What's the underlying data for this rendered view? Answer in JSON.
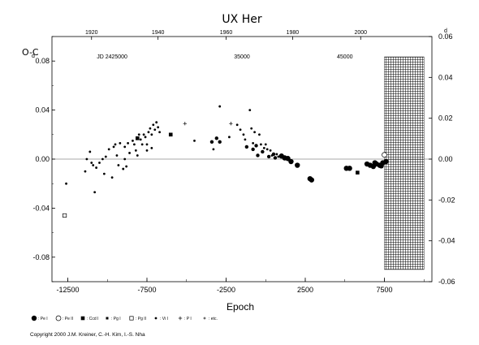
{
  "chart_data": {
    "type": "scatter",
    "title": "UX Her",
    "ylabel": "O-C",
    "xlabel": "Epoch",
    "xlim": [
      -13500,
      10500
    ],
    "ylim": [
      -0.1,
      0.1
    ],
    "right_ylim": [
      -0.06,
      0.06
    ],
    "x_ticks": [
      -12500,
      -7500,
      -2500,
      2500,
      7500
    ],
    "x_tick_labels": [
      "-12500",
      "-7500",
      "-2500",
      "2500",
      "7500"
    ],
    "y_ticks": [
      -0.08,
      -0.04,
      0.0,
      0.04,
      0.08
    ],
    "y_tick_labels": [
      "-0.08",
      "-0.04",
      "0.00",
      "0.04",
      "0.08"
    ],
    "y_exponent_label": "d",
    "right_y_ticks": [
      -0.06,
      -0.04,
      -0.02,
      0.0,
      0.02,
      0.04,
      0.06
    ],
    "right_y_tick_labels": [
      "-0.06",
      "-0.04",
      "-0.02",
      "0.00",
      "0.02",
      "0.04",
      "0.06"
    ],
    "right_y_exponent_label": "d",
    "top_year_ticks": [
      1920,
      1940,
      1960,
      1980,
      2000
    ],
    "top_year_labels": [
      "1920",
      "1940",
      "1960",
      "1980",
      "2000"
    ],
    "top_year_epochs": [
      -11000,
      -6800,
      -2500,
      1700,
      6000
    ],
    "jd_labels": [
      "JD 2425000",
      "35000",
      "45000"
    ],
    "jd_epochs": [
      -9700,
      -1500,
      5000
    ],
    "hatched_region": [
      7500,
      10000
    ],
    "grid": false,
    "legend_position": "bottom",
    "legend": [
      {
        "marker": "filled-circle-large",
        "label": ": Pe I"
      },
      {
        "marker": "open-circle",
        "label": ": Pe II"
      },
      {
        "marker": "filled-square",
        "label": ": Ccd I"
      },
      {
        "marker": "filled-square-small",
        "label": ": Pg I"
      },
      {
        "marker": "open-square",
        "label": ": Pg II"
      },
      {
        "marker": "filled-circle-small",
        "label": ": Vi I"
      },
      {
        "marker": "plus",
        "label": ": P I"
      },
      {
        "marker": "plus-small",
        "label": ": etc."
      }
    ],
    "series": [
      {
        "marker": "filled-circle-large",
        "points": [
          [
            1000,
            0.0025
          ],
          [
            1200,
            0.001
          ],
          [
            1400,
            0.0005
          ],
          [
            1600,
            -0.002
          ],
          [
            2000,
            -0.005
          ],
          [
            2800,
            -0.016
          ],
          [
            2900,
            -0.017
          ],
          [
            5100,
            -0.0075
          ],
          [
            5300,
            -0.0075
          ],
          [
            6400,
            -0.004
          ],
          [
            6600,
            -0.005
          ],
          [
            6800,
            -0.006
          ],
          [
            7000,
            -0.004
          ],
          [
            7200,
            -0.005
          ],
          [
            7400,
            -0.003
          ],
          [
            7600,
            -0.002
          ],
          [
            7300,
            -0.0055
          ],
          [
            6900,
            -0.003
          ]
        ]
      },
      {
        "marker": "open-circle",
        "points": [
          [
            7500,
            0.0035
          ]
        ]
      },
      {
        "marker": "filled-square",
        "points": [
          [
            -8100,
            0.017
          ],
          [
            -6000,
            0.02
          ],
          [
            5800,
            -0.011
          ]
        ]
      },
      {
        "marker": "open-square",
        "points": [
          [
            -12700,
            -0.046
          ]
        ]
      },
      {
        "marker": "filled-circle-medium",
        "points": [
          [
            -3400,
            0.014
          ],
          [
            -3100,
            0.017
          ],
          [
            -2900,
            0.014
          ],
          [
            -1200,
            0.01
          ],
          [
            -600,
            0.011
          ],
          [
            -800,
            0.008
          ],
          [
            -500,
            0.003
          ],
          [
            -200,
            0.006
          ],
          [
            200,
            0.002
          ],
          [
            500,
            0.004
          ],
          [
            600,
            0.001
          ]
        ]
      },
      {
        "marker": "filled-circle-small",
        "points": [
          [
            -12600,
            -0.02
          ],
          [
            -11400,
            -0.01
          ],
          [
            -11100,
            0.006
          ],
          [
            -10900,
            -0.005
          ],
          [
            -10700,
            -0.007
          ],
          [
            -10800,
            -0.027
          ],
          [
            -10500,
            -0.003
          ],
          [
            -10300,
            0.0
          ],
          [
            -10200,
            -0.012
          ],
          [
            -10100,
            0.002
          ],
          [
            -9900,
            0.008
          ],
          [
            -9700,
            -0.015
          ],
          [
            -9600,
            0.01
          ],
          [
            -9500,
            0.012
          ],
          [
            -9300,
            -0.005
          ],
          [
            -9200,
            0.013
          ],
          [
            -9000,
            -0.008
          ],
          [
            -8900,
            0.01
          ],
          [
            -8700,
            0.013
          ],
          [
            -8600,
            0.005
          ],
          [
            -8400,
            0.015
          ],
          [
            -8300,
            0.012
          ],
          [
            -8200,
            0.007
          ],
          [
            -8100,
            0.003
          ],
          [
            -8000,
            0.02
          ],
          [
            -7900,
            0.016
          ],
          [
            -7800,
            0.012
          ],
          [
            -7700,
            0.02
          ],
          [
            -7600,
            0.018
          ],
          [
            -7500,
            0.012
          ],
          [
            -7400,
            0.022
          ],
          [
            -7300,
            0.025
          ],
          [
            -7200,
            0.02
          ],
          [
            -7100,
            0.028
          ],
          [
            -7000,
            0.024
          ],
          [
            -6900,
            0.03
          ],
          [
            -6800,
            0.026
          ],
          [
            -6700,
            0.022
          ],
          [
            -7500,
            0.007
          ],
          [
            -7200,
            0.009
          ],
          [
            -4500,
            0.015
          ],
          [
            -3300,
            0.008
          ],
          [
            -2900,
            0.043
          ],
          [
            -2300,
            0.018
          ],
          [
            -1800,
            0.028
          ],
          [
            -1600,
            0.024
          ],
          [
            -1400,
            0.02
          ],
          [
            -1300,
            0.016
          ],
          [
            -1000,
            0.04
          ],
          [
            -900,
            0.025
          ],
          [
            -800,
            0.013
          ],
          [
            -700,
            0.022
          ],
          [
            -400,
            0.02
          ],
          [
            -300,
            0.012
          ],
          [
            -100,
            0.009
          ],
          [
            0,
            0.012
          ],
          [
            100,
            0.008
          ],
          [
            300,
            0.007
          ],
          [
            400,
            0.003
          ],
          [
            700,
            0.004
          ],
          [
            800,
            0.002
          ],
          [
            -8900,
            0.0
          ],
          [
            -8800,
            -0.006
          ],
          [
            -9400,
            0.003
          ],
          [
            -11300,
            0.0
          ],
          [
            -11000,
            -0.003
          ]
        ]
      },
      {
        "marker": "plus",
        "points": [
          [
            -5100,
            0.029
          ],
          [
            -2200,
            0.029
          ]
        ]
      }
    ]
  },
  "copyright": "Copyright 2000 J.M. Kreiner, C.-H. Kim, I.-S. Nha"
}
